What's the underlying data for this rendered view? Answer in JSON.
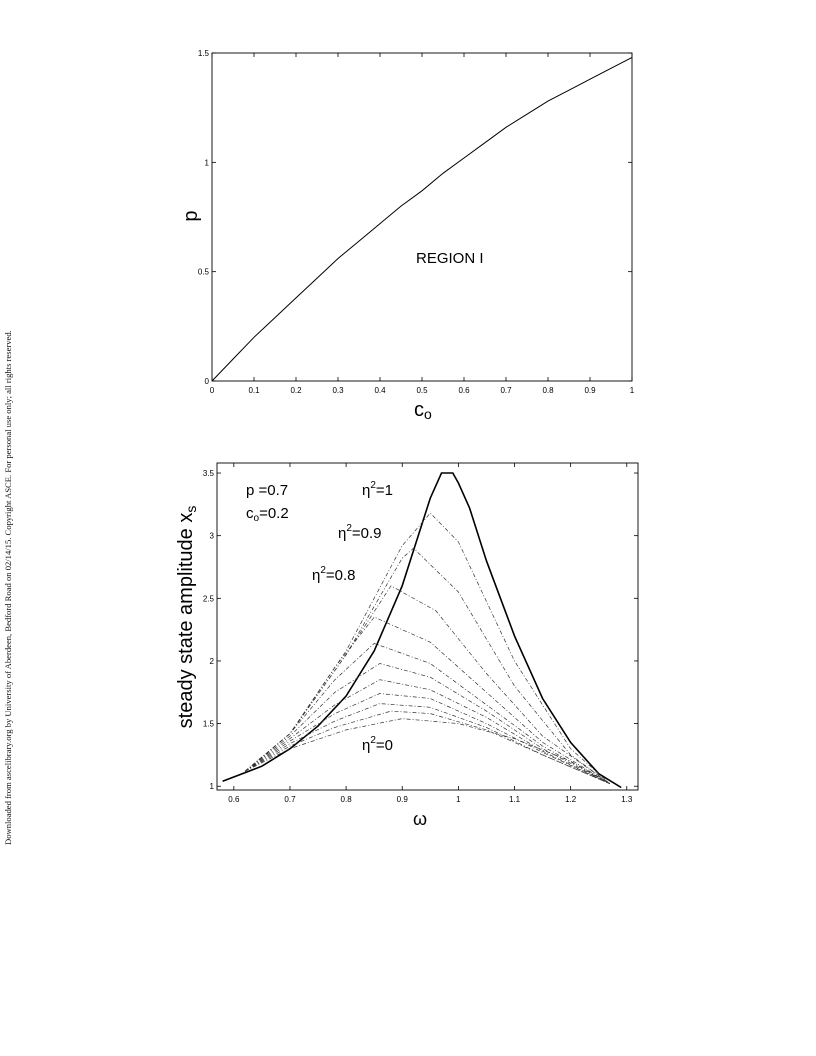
{
  "margin_note": "Downloaded from ascelibrary.org by University of Aberdeen, Bedford Road on 02/14/15. Copyright ASCE. For personal use only; all rights reserved.",
  "chart_data": [
    {
      "type": "line",
      "xlabel_main": "c",
      "xlabel_sub": "o",
      "ylabel": "p",
      "xlim": [
        0,
        1
      ],
      "ylim": [
        0,
        1.5
      ],
      "x_ticks": [
        0,
        0.1,
        0.2,
        0.3,
        0.4,
        0.5,
        0.6,
        0.7,
        0.8,
        0.9,
        1
      ],
      "y_ticks": [
        0,
        0.5,
        1,
        1.5
      ],
      "annotation": "REGION I",
      "grid": false,
      "series": [
        {
          "x": [
            0,
            0.05,
            0.1,
            0.15,
            0.2,
            0.25,
            0.3,
            0.35,
            0.4,
            0.45,
            0.5,
            0.55,
            0.6,
            0.65,
            0.7,
            0.75,
            0.8,
            0.85,
            0.9,
            0.95,
            1.0
          ],
          "y": [
            0,
            0.1,
            0.2,
            0.29,
            0.38,
            0.47,
            0.56,
            0.64,
            0.72,
            0.8,
            0.87,
            0.95,
            1.02,
            1.09,
            1.16,
            1.22,
            1.28,
            1.33,
            1.38,
            1.43,
            1.48
          ]
        }
      ]
    },
    {
      "type": "line",
      "xlabel": "ω",
      "ylabel_main": "steady state amplitude x",
      "ylabel_sub": "s",
      "xlim": [
        0.57,
        1.32
      ],
      "ylim": [
        0.97,
        3.58
      ],
      "x_ticks": [
        0.6,
        0.7,
        0.8,
        0.9,
        1,
        1.1,
        1.2,
        1.3
      ],
      "y_ticks": [
        1,
        1.5,
        2,
        2.5,
        3,
        3.5
      ],
      "grid": false,
      "annotations": {
        "params_p": "p =0.7",
        "params_c_main": "c",
        "params_c_sub": "o",
        "params_c_rest": "=0.2",
        "eta_1_main": "η",
        "eta_1_sup": "2",
        "eta_1_rest": "=1",
        "eta_09_main": "η",
        "eta_09_sup": "2",
        "eta_09_rest": "=0.9",
        "eta_08_main": "η",
        "eta_08_sup": "2",
        "eta_08_rest": "=0.8",
        "eta_0_main": "η",
        "eta_0_sup": "2",
        "eta_0_rest": "=0"
      },
      "series": [
        {
          "x": [
            0.58,
            0.65,
            0.7,
            0.75,
            0.8,
            0.85,
            0.9,
            0.95,
            0.97,
            0.99,
            1.0,
            1.02,
            1.05,
            1.1,
            1.15,
            1.2,
            1.25,
            1.29
          ],
          "y": [
            1.04,
            1.16,
            1.3,
            1.48,
            1.72,
            2.08,
            2.6,
            3.3,
            3.5,
            3.5,
            3.42,
            3.22,
            2.8,
            2.2,
            1.7,
            1.35,
            1.1,
            0.99
          ]
        },
        {
          "x": [
            0.62,
            0.7,
            0.8,
            0.9,
            0.95,
            1.0,
            1.1,
            1.2,
            1.27
          ],
          "y": [
            1.12,
            1.42,
            2.08,
            2.92,
            3.18,
            2.95,
            2.0,
            1.3,
            1.02
          ]
        },
        {
          "x": [
            0.62,
            0.7,
            0.8,
            0.9,
            0.92,
            1.0,
            1.1,
            1.2,
            1.27
          ],
          "y": [
            1.12,
            1.42,
            2.05,
            2.82,
            2.9,
            2.55,
            1.8,
            1.25,
            1.02
          ]
        },
        {
          "x": [
            0.62,
            0.7,
            0.8,
            0.88,
            0.96,
            1.05,
            1.15,
            1.27
          ],
          "y": [
            1.12,
            1.42,
            2.05,
            2.6,
            2.4,
            1.9,
            1.4,
            1.02
          ]
        },
        {
          "x": [
            0.62,
            0.7,
            0.78,
            0.85,
            0.95,
            1.05,
            1.15,
            1.27
          ],
          "y": [
            1.12,
            1.42,
            1.95,
            2.35,
            2.15,
            1.75,
            1.35,
            1.02
          ]
        },
        {
          "x": [
            0.62,
            0.7,
            0.78,
            0.85,
            0.95,
            1.05,
            1.15,
            1.27
          ],
          "y": [
            1.12,
            1.42,
            1.85,
            2.14,
            1.98,
            1.65,
            1.32,
            1.02
          ]
        },
        {
          "x": [
            0.62,
            0.7,
            0.78,
            0.86,
            0.95,
            1.05,
            1.15,
            1.27
          ],
          "y": [
            1.12,
            1.4,
            1.75,
            1.98,
            1.87,
            1.6,
            1.3,
            1.02
          ]
        },
        {
          "x": [
            0.62,
            0.7,
            0.78,
            0.86,
            0.95,
            1.05,
            1.15,
            1.27
          ],
          "y": [
            1.12,
            1.38,
            1.65,
            1.85,
            1.77,
            1.55,
            1.28,
            1.02
          ]
        },
        {
          "x": [
            0.62,
            0.7,
            0.78,
            0.86,
            0.95,
            1.05,
            1.15,
            1.27
          ],
          "y": [
            1.12,
            1.36,
            1.58,
            1.74,
            1.7,
            1.5,
            1.27,
            1.02
          ]
        },
        {
          "x": [
            0.62,
            0.7,
            0.78,
            0.86,
            0.95,
            1.05,
            1.15,
            1.27
          ],
          "y": [
            1.12,
            1.34,
            1.52,
            1.66,
            1.63,
            1.47,
            1.25,
            1.02
          ]
        },
        {
          "x": [
            0.62,
            0.7,
            0.78,
            0.88,
            0.95,
            1.05,
            1.15,
            1.27
          ],
          "y": [
            1.12,
            1.32,
            1.47,
            1.6,
            1.58,
            1.45,
            1.25,
            1.02
          ]
        },
        {
          "x": [
            0.62,
            0.7,
            0.8,
            0.9,
            1.0,
            1.1,
            1.2,
            1.27
          ],
          "y": [
            1.12,
            1.3,
            1.45,
            1.54,
            1.5,
            1.38,
            1.2,
            1.02
          ]
        }
      ]
    }
  ]
}
